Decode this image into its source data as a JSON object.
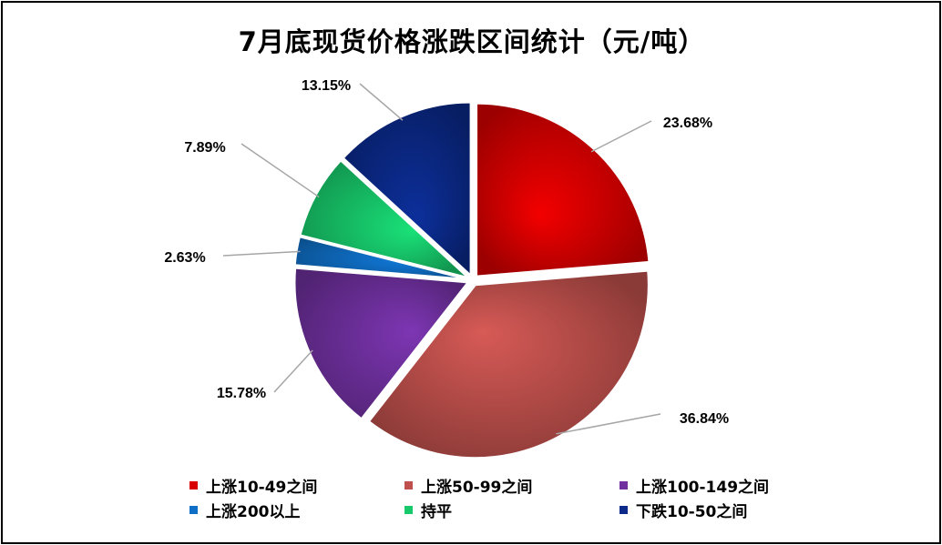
{
  "chart_data": {
    "type": "pie",
    "title": "7月底现货价格涨跌区间统计（元/吨）",
    "legend_position": "bottom",
    "series": [
      {
        "name": "上涨10-49之间",
        "value": 23.68,
        "label": "23.68%",
        "color": "#d90000"
      },
      {
        "name": "上涨50-99之间",
        "value": 36.84,
        "label": "36.84%",
        "color": "#c0504d"
      },
      {
        "name": "上涨100-149之间",
        "value": 15.78,
        "label": "15.78%",
        "color": "#7030a0"
      },
      {
        "name": "上涨200以上",
        "value": 2.63,
        "label": "2.63%",
        "color": "#0f6fc6"
      },
      {
        "name": "持平",
        "value": 7.89,
        "label": "7.89%",
        "color": "#17c96b"
      },
      {
        "name": "下跌10-50之间",
        "value": 13.15,
        "label": "13.15%",
        "color": "#0b2a8a"
      }
    ]
  }
}
